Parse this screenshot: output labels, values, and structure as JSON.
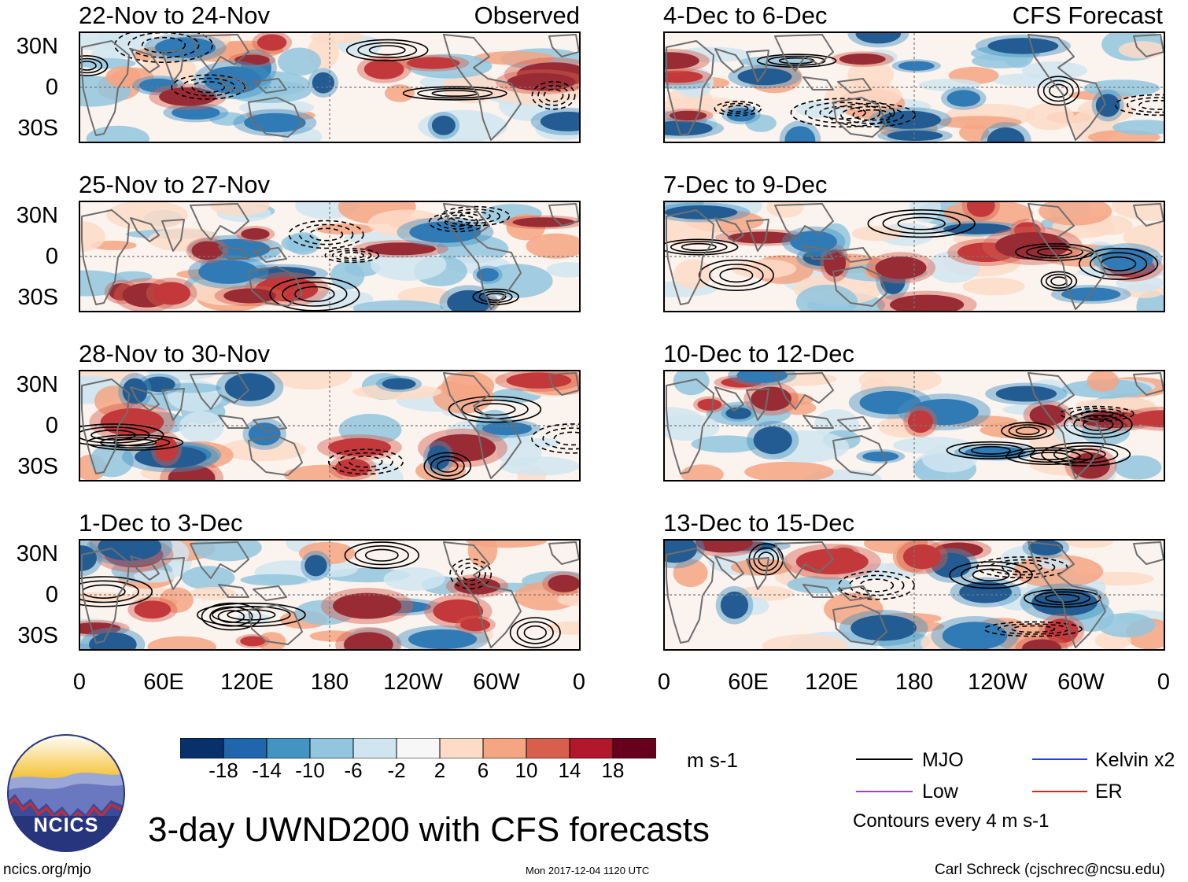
{
  "panels": [
    {
      "title": "22-Nov to 24-Nov",
      "label": "Observed"
    },
    {
      "title": "25-Nov to 27-Nov",
      "label": ""
    },
    {
      "title": "28-Nov to 30-Nov",
      "label": ""
    },
    {
      "title": "1-Dec to 3-Dec",
      "label": ""
    },
    {
      "title": "4-Dec to 6-Dec",
      "label": "CFS Forecast"
    },
    {
      "title": "7-Dec to 9-Dec",
      "label": ""
    },
    {
      "title": "10-Dec to 12-Dec",
      "label": ""
    },
    {
      "title": "13-Dec to 15-Dec",
      "label": ""
    }
  ],
  "lat_labels": [
    "30N",
    "0",
    "30S"
  ],
  "lon_labels": [
    "0",
    "60E",
    "120E",
    "180",
    "120W",
    "60W",
    "0"
  ],
  "colorbar": {
    "colors": [
      "#08306b",
      "#2166ac",
      "#4393c3",
      "#92c5de",
      "#d1e5f0",
      "#f7f7f7",
      "#fddbc7",
      "#f4a582",
      "#d6604d",
      "#b2182b",
      "#67001f"
    ],
    "labels": [
      "-18",
      "-14",
      "-10",
      "-6",
      "-2",
      "2",
      "6",
      "10",
      "14",
      "18"
    ],
    "units": "m s-1"
  },
  "legend": {
    "mjo": {
      "label": "MJO",
      "color": "#000000"
    },
    "kelvin": {
      "label": "Kelvin x2",
      "color": "#2040e0"
    },
    "low": {
      "label": "Low",
      "color": "#a040e0"
    },
    "er": {
      "label": "ER",
      "color": "#e02020"
    },
    "note": "Contours every 4 m s-1"
  },
  "logo_text": "NCICS",
  "main_title": "3-day UWND200 with CFS forecasts",
  "footer": {
    "url": "ncics.org/mjo",
    "timestamp": "Mon 2017-12-04 1120 UTC",
    "credit": "Carl Schreck (cjschrec@ncsu.edu)"
  }
}
